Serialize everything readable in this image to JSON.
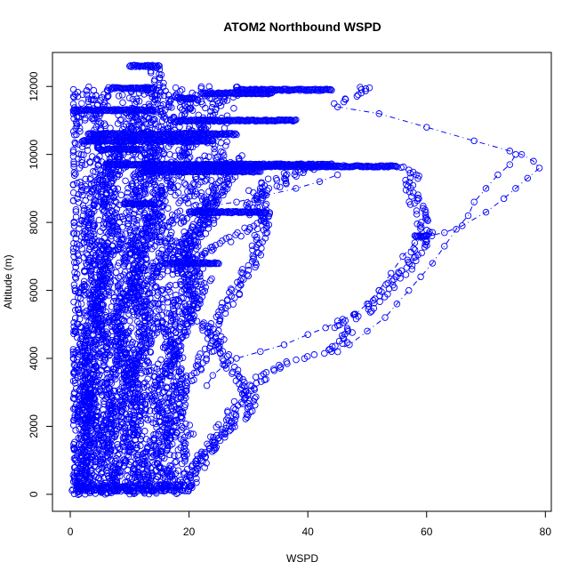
{
  "chart_data": {
    "type": "scatter",
    "title": "ATOM2 Northbound WSPD",
    "xlabel": "WSPD",
    "ylabel": "Altitude (m)",
    "xlim": [
      -3,
      81
    ],
    "ylim": [
      -500,
      13000
    ],
    "xticks": [
      0,
      20,
      40,
      60,
      80
    ],
    "yticks": [
      0,
      2000,
      4000,
      6000,
      8000,
      10000,
      12000
    ],
    "grid": false,
    "legend": "none",
    "point_color": "#0000ff",
    "profiles": [
      [
        [
          1,
          0
        ],
        [
          2,
          800
        ],
        [
          3,
          1600
        ],
        [
          2,
          2400
        ],
        [
          4,
          3200
        ],
        [
          3,
          4000
        ],
        [
          5,
          4800
        ],
        [
          4,
          5600
        ],
        [
          6,
          6400
        ],
        [
          5,
          7200
        ],
        [
          7,
          8000
        ],
        [
          6,
          8800
        ],
        [
          8,
          9600
        ],
        [
          10,
          10400
        ],
        [
          13,
          11200
        ],
        [
          15,
          12000
        ],
        [
          14,
          12600
        ]
      ],
      [
        [
          3,
          0
        ],
        [
          5,
          1000
        ],
        [
          7,
          2000
        ],
        [
          6,
          3000
        ],
        [
          9,
          4000
        ],
        [
          8,
          5000
        ],
        [
          11,
          6000
        ],
        [
          10,
          7000
        ],
        [
          13,
          8000
        ],
        [
          12,
          9000
        ],
        [
          15,
          10000
        ],
        [
          18,
          11000
        ],
        [
          21,
          11700
        ]
      ],
      [
        [
          6,
          0
        ],
        [
          9,
          1200
        ],
        [
          12,
          2400
        ],
        [
          10,
          3600
        ],
        [
          14,
          4800
        ],
        [
          12,
          6000
        ],
        [
          16,
          7200
        ],
        [
          14,
          8400
        ],
        [
          18,
          9600
        ],
        [
          22,
          10800
        ],
        [
          26,
          11800
        ]
      ],
      [
        [
          10,
          0
        ],
        [
          13,
          1000
        ],
        [
          16,
          2000
        ],
        [
          14,
          3000
        ],
        [
          18,
          4000
        ],
        [
          16,
          5000
        ],
        [
          20,
          6000
        ],
        [
          18,
          7000
        ],
        [
          22,
          8000
        ],
        [
          25,
          9000
        ],
        [
          28,
          10000
        ]
      ],
      [
        [
          13,
          100
        ],
        [
          16,
          1400
        ],
        [
          19,
          2800
        ],
        [
          17,
          4200
        ],
        [
          21,
          5600
        ],
        [
          19,
          7000
        ],
        [
          23,
          8400
        ],
        [
          27,
          9400
        ]
      ],
      [
        [
          2,
          200
        ],
        [
          4,
          1500
        ],
        [
          3,
          3000
        ],
        [
          6,
          4500
        ],
        [
          4,
          6000
        ],
        [
          8,
          7500
        ],
        [
          6,
          9000
        ],
        [
          9,
          10500
        ],
        [
          11,
          11300
        ]
      ],
      [
        [
          8,
          150
        ],
        [
          6,
          1800
        ],
        [
          10,
          3500
        ],
        [
          8,
          5200
        ],
        [
          12,
          6900
        ],
        [
          10,
          8600
        ],
        [
          14,
          10300
        ]
      ],
      [
        [
          15,
          100
        ],
        [
          18,
          900
        ],
        [
          20,
          1800
        ],
        [
          17,
          2700
        ],
        [
          21,
          3600
        ],
        [
          24,
          4500
        ],
        [
          20,
          5400
        ],
        [
          23,
          6300
        ],
        [
          19,
          7200
        ],
        [
          24,
          8100
        ],
        [
          21,
          9000
        ],
        [
          26,
          9900
        ]
      ],
      [
        [
          18,
          200
        ],
        [
          22,
          1000
        ],
        [
          25,
          1800
        ],
        [
          28,
          2600
        ],
        [
          32,
          3400
        ],
        [
          35,
          3800
        ],
        [
          40,
          4000
        ],
        [
          44,
          4200
        ],
        [
          47,
          4700
        ],
        [
          45,
          5000
        ],
        [
          50,
          5400
        ],
        [
          53,
          6000
        ],
        [
          56,
          6500
        ],
        [
          58,
          7000
        ],
        [
          60,
          7600
        ],
        [
          59,
          8300
        ],
        [
          57,
          9000
        ],
        [
          58,
          9500
        ],
        [
          55,
          9700
        ]
      ],
      [
        [
          20,
          300
        ],
        [
          23,
          1200
        ],
        [
          27,
          2000
        ],
        [
          31,
          2600
        ],
        [
          29,
          3300
        ],
        [
          26,
          4000
        ],
        [
          24,
          5000
        ],
        [
          28,
          6000
        ],
        [
          31,
          7000
        ],
        [
          33,
          8200
        ],
        [
          31,
          9000
        ],
        [
          36,
          9400
        ],
        [
          40,
          9600
        ],
        [
          44,
          9700
        ]
      ],
      [
        [
          45,
          11500
        ],
        [
          48,
          11700
        ],
        [
          50,
          11900
        ],
        [
          49,
          12000
        ]
      ],
      [
        [
          20,
          6800
        ],
        [
          24,
          7200
        ],
        [
          28,
          7600
        ],
        [
          32,
          8000
        ],
        [
          30,
          8600
        ],
        [
          34,
          9000
        ],
        [
          38,
          9400
        ],
        [
          42,
          9700
        ]
      ],
      [
        [
          1,
          100
        ],
        [
          3,
          2000
        ],
        [
          2,
          4000
        ],
        [
          5,
          6000
        ],
        [
          3,
          8000
        ],
        [
          6,
          10000
        ],
        [
          4,
          11500
        ]
      ],
      [
        [
          11,
          500
        ],
        [
          9,
          2500
        ],
        [
          13,
          4500
        ],
        [
          11,
          6500
        ],
        [
          15,
          8500
        ],
        [
          13,
          10500
        ],
        [
          17,
          11800
        ]
      ]
    ],
    "dense_runs": [
      {
        "y": 11300,
        "x": [
          0.5,
          14
        ]
      },
      {
        "y": 10600,
        "x": [
          3,
          28
        ]
      },
      {
        "y": 10400,
        "x": [
          2,
          24
        ]
      },
      {
        "y": 9700,
        "x": [
          6,
          44
        ]
      },
      {
        "y": 9650,
        "x": [
          20,
          55
        ]
      },
      {
        "y": 11900,
        "x": [
          28,
          44
        ]
      },
      {
        "y": 11800,
        "x": [
          22,
          34
        ]
      },
      {
        "y": 11000,
        "x": [
          18,
          38
        ]
      },
      {
        "y": 12600,
        "x": [
          10,
          15
        ]
      },
      {
        "y": 11950,
        "x": [
          7,
          14
        ]
      },
      {
        "y": 11650,
        "x": [
          18,
          21
        ]
      },
      {
        "y": 8300,
        "x": [
          20,
          33
        ]
      },
      {
        "y": 8550,
        "x": [
          9,
          14
        ]
      },
      {
        "y": 6800,
        "x": [
          16,
          25
        ]
      },
      {
        "y": 10150,
        "x": [
          5,
          12
        ]
      },
      {
        "y": 9500,
        "x": [
          12,
          32
        ]
      },
      {
        "y": 7600,
        "x": [
          58,
          60
        ]
      }
    ],
    "trace_segments": [
      [
        [
          45,
          11400
        ],
        [
          52,
          11200
        ],
        [
          60,
          10800
        ],
        [
          68,
          10400
        ],
        [
          74,
          10100
        ],
        [
          76,
          10000
        ],
        [
          78,
          9800
        ],
        [
          79,
          9600
        ],
        [
          77,
          9300
        ],
        [
          75,
          9000
        ],
        [
          73,
          8700
        ],
        [
          70,
          8300
        ],
        [
          66,
          7900
        ],
        [
          63,
          7700
        ],
        [
          60,
          7600
        ],
        [
          58,
          7400
        ],
        [
          56,
          7000
        ],
        [
          54,
          6500
        ],
        [
          52,
          6000
        ],
        [
          50,
          5600
        ],
        [
          48,
          5300
        ],
        [
          45,
          5100
        ],
        [
          43,
          4900
        ],
        [
          40,
          4700
        ],
        [
          36,
          4400
        ],
        [
          32,
          4200
        ],
        [
          28,
          4000
        ],
        [
          26,
          3800
        ],
        [
          24,
          3500
        ],
        [
          23,
          3200
        ]
      ],
      [
        [
          24,
          8500
        ],
        [
          28,
          8600
        ],
        [
          33,
          8800
        ],
        [
          38,
          9000
        ],
        [
          42,
          9200
        ],
        [
          45,
          9400
        ]
      ],
      [
        [
          44,
          4200
        ],
        [
          47,
          4400
        ],
        [
          50,
          4800
        ],
        [
          53,
          5200
        ],
        [
          55,
          5600
        ],
        [
          57,
          6000
        ],
        [
          59,
          6400
        ],
        [
          61,
          6800
        ],
        [
          63,
          7300
        ],
        [
          65,
          7800
        ],
        [
          67,
          8200
        ],
        [
          68,
          8600
        ],
        [
          70,
          9000
        ],
        [
          72,
          9400
        ],
        [
          74,
          9700
        ],
        [
          75,
          10000
        ]
      ]
    ]
  }
}
